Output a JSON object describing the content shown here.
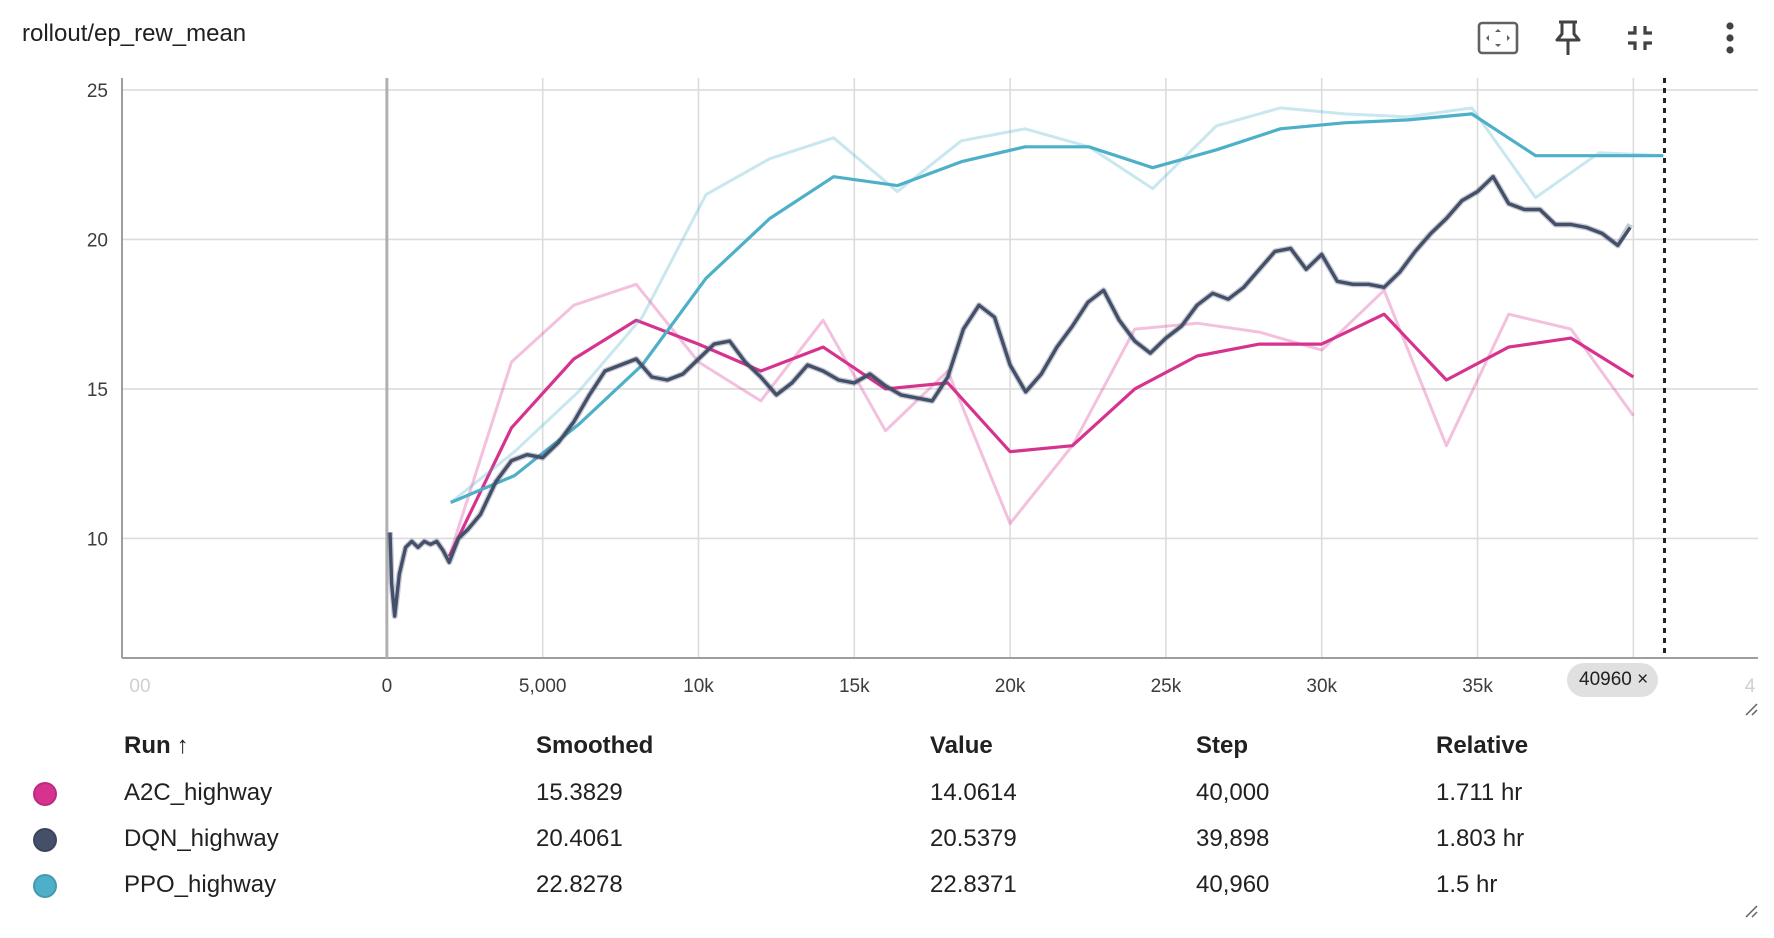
{
  "title": "rollout/ep_rew_mean",
  "toolbar": {
    "icons": [
      "fit-domain-icon",
      "pin-icon",
      "collapse-icon",
      "more-vert-icon"
    ]
  },
  "step_chip": {
    "value": "40960",
    "close": "×"
  },
  "table": {
    "headers": {
      "run": "Run",
      "sort": "↑",
      "smoothed": "Smoothed",
      "value": "Value",
      "step": "Step",
      "relative": "Relative"
    },
    "rows": [
      {
        "color": "#d6338f",
        "run": "A2C_highway",
        "smoothed": "15.3829",
        "value": "14.0614",
        "step": "40,000",
        "relative": "1.711 hr"
      },
      {
        "color": "#44506a",
        "run": "DQN_highway",
        "smoothed": "20.4061",
        "value": "20.5379",
        "step": "39,898",
        "relative": "1.803 hr"
      },
      {
        "color": "#4db0c8",
        "run": "PPO_highway",
        "smoothed": "22.8278",
        "value": "22.8371",
        "step": "40,960",
        "relative": "1.5 hr"
      }
    ]
  },
  "chart_data": {
    "type": "line",
    "title": "rollout/ep_rew_mean",
    "xlim": [
      -8500,
      44000
    ],
    "ylim": [
      6,
      25.4
    ],
    "x_ticks": [
      0,
      5000,
      10000,
      15000,
      20000,
      25000,
      30000,
      35000,
      40000
    ],
    "x_tick_labels": [
      "0",
      "5,000",
      "10k",
      "15k",
      "20k",
      "25k",
      "30k",
      "35k",
      ""
    ],
    "x_edge_labels": [
      "00",
      "4"
    ],
    "y_ticks": [
      10,
      15,
      20,
      25
    ],
    "y_tick_labels": [
      "10",
      "15",
      "20",
      "25"
    ],
    "grid": true,
    "cursor_step": 41000,
    "series": [
      {
        "name": "A2C_highway",
        "color": "#d6338f",
        "x": [
          2000,
          4000,
          6000,
          8000,
          10000,
          12000,
          14000,
          16000,
          18000,
          20000,
          22000,
          24000,
          26000,
          28000,
          30000,
          32000,
          34000,
          36000,
          38000,
          40000
        ],
        "raw": [
          9.4,
          15.9,
          17.8,
          18.5,
          15.9,
          14.6,
          17.3,
          13.6,
          15.6,
          10.5,
          13.1,
          17.0,
          17.2,
          16.9,
          16.3,
          18.3,
          13.1,
          17.5,
          17.0,
          14.1
        ],
        "smoothed": [
          9.4,
          13.7,
          16.0,
          17.3,
          16.5,
          15.6,
          16.4,
          15.0,
          15.2,
          12.9,
          13.1,
          15.0,
          16.1,
          16.5,
          16.5,
          17.5,
          15.3,
          16.4,
          16.7,
          15.4
        ]
      },
      {
        "name": "PPO_highway",
        "color": "#4db0c8",
        "x": [
          2048,
          4096,
          6144,
          8192,
          10240,
          12288,
          14336,
          16384,
          18432,
          20480,
          22528,
          24576,
          26624,
          28672,
          30720,
          32768,
          34816,
          36864,
          38912,
          40960
        ],
        "raw": [
          11.2,
          12.9,
          14.9,
          17.4,
          21.5,
          22.7,
          23.4,
          21.6,
          23.3,
          23.7,
          23.1,
          21.7,
          23.8,
          24.4,
          24.2,
          24.1,
          24.4,
          21.4,
          22.9,
          22.8
        ],
        "smoothed": [
          11.2,
          12.1,
          13.8,
          15.8,
          18.7,
          20.7,
          22.1,
          21.8,
          22.6,
          23.1,
          23.1,
          22.4,
          23.0,
          23.7,
          23.9,
          24.0,
          24.2,
          22.8,
          22.8,
          22.8
        ]
      },
      {
        "name": "DQN_highway",
        "color": "#44506a",
        "x": [
          100,
          150,
          250,
          400,
          600,
          800,
          1000,
          1200,
          1400,
          1600,
          1800,
          2000,
          2300,
          2600,
          3000,
          3500,
          4000,
          4500,
          5000,
          5500,
          6000,
          6500,
          7000,
          7500,
          8000,
          8500,
          9000,
          9500,
          10000,
          10500,
          11000,
          11500,
          12000,
          12500,
          13000,
          13500,
          14000,
          14500,
          15000,
          15500,
          16000,
          16500,
          17000,
          17500,
          18000,
          18500,
          19000,
          19500,
          20000,
          20500,
          21000,
          21500,
          22000,
          22500,
          23000,
          23500,
          24000,
          24500,
          25000,
          25500,
          26000,
          26500,
          27000,
          27500,
          28000,
          28500,
          29000,
          29500,
          30000,
          30500,
          31000,
          31500,
          32000,
          32500,
          33000,
          33500,
          34000,
          34500,
          35000,
          35500,
          36000,
          36500,
          37000,
          37500,
          38000,
          38500,
          39000,
          39500,
          39898
        ],
        "raw": [
          10.2,
          8.5,
          7.4,
          8.8,
          9.7,
          9.9,
          9.7,
          9.9,
          9.8,
          9.9,
          9.6,
          9.2,
          10.0,
          10.3,
          10.8,
          11.9,
          12.6,
          12.8,
          12.7,
          13.2,
          13.9,
          14.8,
          15.6,
          15.8,
          16.0,
          15.4,
          15.3,
          15.5,
          16.0,
          16.5,
          16.6,
          15.9,
          15.4,
          14.8,
          15.2,
          15.8,
          15.6,
          15.3,
          15.2,
          15.5,
          15.1,
          14.8,
          14.7,
          14.6,
          15.4,
          17.0,
          17.8,
          17.4,
          15.8,
          14.9,
          15.5,
          16.4,
          17.1,
          17.9,
          18.3,
          17.3,
          16.6,
          16.2,
          16.7,
          17.1,
          17.8,
          18.2,
          18.0,
          18.4,
          19.0,
          19.6,
          19.7,
          19.0,
          19.5,
          18.6,
          18.5,
          18.5,
          18.4,
          18.9,
          19.6,
          20.2,
          20.7,
          21.3,
          21.6,
          22.1,
          21.2,
          21.0,
          21.0,
          20.5,
          20.5,
          20.4,
          20.2,
          19.8,
          20.5
        ],
        "smoothed": [
          10.2,
          8.5,
          7.4,
          8.8,
          9.7,
          9.9,
          9.7,
          9.9,
          9.8,
          9.9,
          9.6,
          9.2,
          10.0,
          10.3,
          10.8,
          11.9,
          12.6,
          12.8,
          12.7,
          13.2,
          13.9,
          14.8,
          15.6,
          15.8,
          16.0,
          15.4,
          15.3,
          15.5,
          16.0,
          16.5,
          16.6,
          15.9,
          15.4,
          14.8,
          15.2,
          15.8,
          15.6,
          15.3,
          15.2,
          15.5,
          15.1,
          14.8,
          14.7,
          14.6,
          15.4,
          17.0,
          17.8,
          17.4,
          15.8,
          14.9,
          15.5,
          16.4,
          17.1,
          17.9,
          18.3,
          17.3,
          16.6,
          16.2,
          16.7,
          17.1,
          17.8,
          18.2,
          18.0,
          18.4,
          19.0,
          19.6,
          19.7,
          19.0,
          19.5,
          18.6,
          18.5,
          18.5,
          18.4,
          18.9,
          19.6,
          20.2,
          20.7,
          21.3,
          21.6,
          22.1,
          21.2,
          21.0,
          21.0,
          20.5,
          20.5,
          20.4,
          20.2,
          19.8,
          20.4
        ]
      }
    ]
  }
}
